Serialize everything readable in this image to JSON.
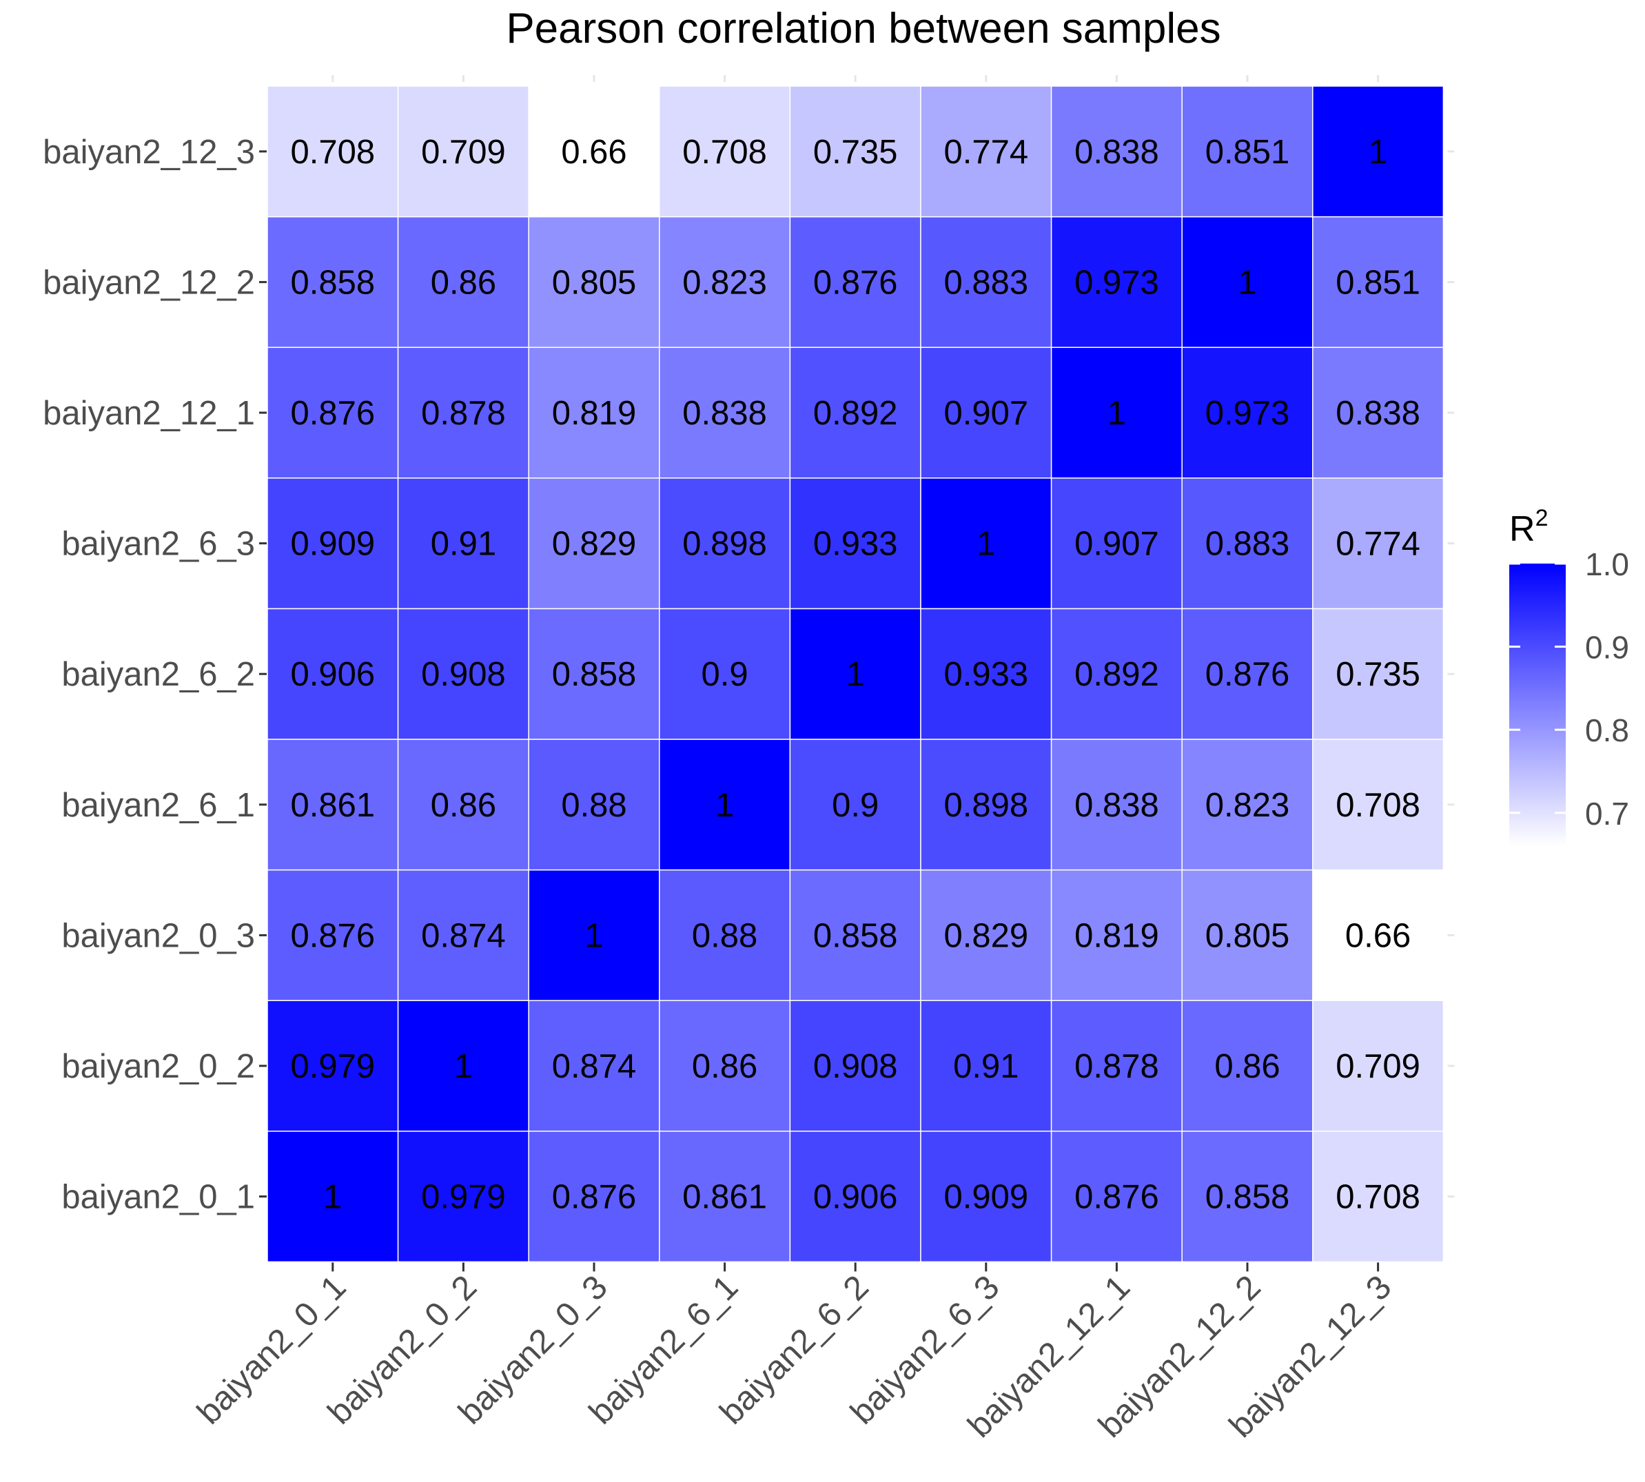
{
  "chart_data": {
    "type": "heatmap",
    "title": "Pearson correlation between samples",
    "x_labels": [
      "baiyan2_0_1",
      "baiyan2_0_2",
      "baiyan2_0_3",
      "baiyan2_6_1",
      "baiyan2_6_2",
      "baiyan2_6_3",
      "baiyan2_12_1",
      "baiyan2_12_2",
      "baiyan2_12_3"
    ],
    "y_labels": [
      "baiyan2_0_1",
      "baiyan2_0_2",
      "baiyan2_0_3",
      "baiyan2_6_1",
      "baiyan2_6_2",
      "baiyan2_6_3",
      "baiyan2_12_1",
      "baiyan2_12_2",
      "baiyan2_12_3"
    ],
    "y_order": "bottom-to-top",
    "matrix_display": [
      [
        "1",
        "0.979",
        "0.876",
        "0.861",
        "0.906",
        "0.909",
        "0.876",
        "0.858",
        "0.708"
      ],
      [
        "0.979",
        "1",
        "0.874",
        "0.86",
        "0.908",
        "0.91",
        "0.878",
        "0.86",
        "0.709"
      ],
      [
        "0.876",
        "0.874",
        "1",
        "0.88",
        "0.858",
        "0.829",
        "0.819",
        "0.805",
        "0.66"
      ],
      [
        "0.861",
        "0.86",
        "0.88",
        "1",
        "0.9",
        "0.898",
        "0.838",
        "0.823",
        "0.708"
      ],
      [
        "0.906",
        "0.908",
        "0.858",
        "0.9",
        "1",
        "0.933",
        "0.892",
        "0.876",
        "0.735"
      ],
      [
        "0.909",
        "0.91",
        "0.829",
        "0.898",
        "0.933",
        "1",
        "0.907",
        "0.883",
        "0.774"
      ],
      [
        "0.876",
        "0.878",
        "0.819",
        "0.838",
        "0.892",
        "0.907",
        "1",
        "0.973",
        "0.838"
      ],
      [
        "0.858",
        "0.86",
        "0.805",
        "0.823",
        "0.876",
        "0.883",
        "0.973",
        "1",
        "0.851"
      ],
      [
        "0.708",
        "0.709",
        "0.66",
        "0.708",
        "0.735",
        "0.774",
        "0.838",
        "0.851",
        "1"
      ]
    ],
    "color_scale": {
      "title": "R",
      "title_superscript": "2",
      "min": 0.66,
      "max": 1.0,
      "low_color": "#ffffff",
      "high_color": "#0000ff",
      "ticks": [
        0.7,
        0.8,
        0.9,
        1.0
      ],
      "tick_labels": [
        "0.7",
        "0.8",
        "0.9",
        "1.0"
      ]
    },
    "legend_position": "right"
  },
  "colors": {
    "tick_text": "#4d4d4d",
    "tick_mark": "#333333",
    "cell_text": "#000000",
    "title_text": "#000000",
    "cell_border": "#ffffff"
  }
}
